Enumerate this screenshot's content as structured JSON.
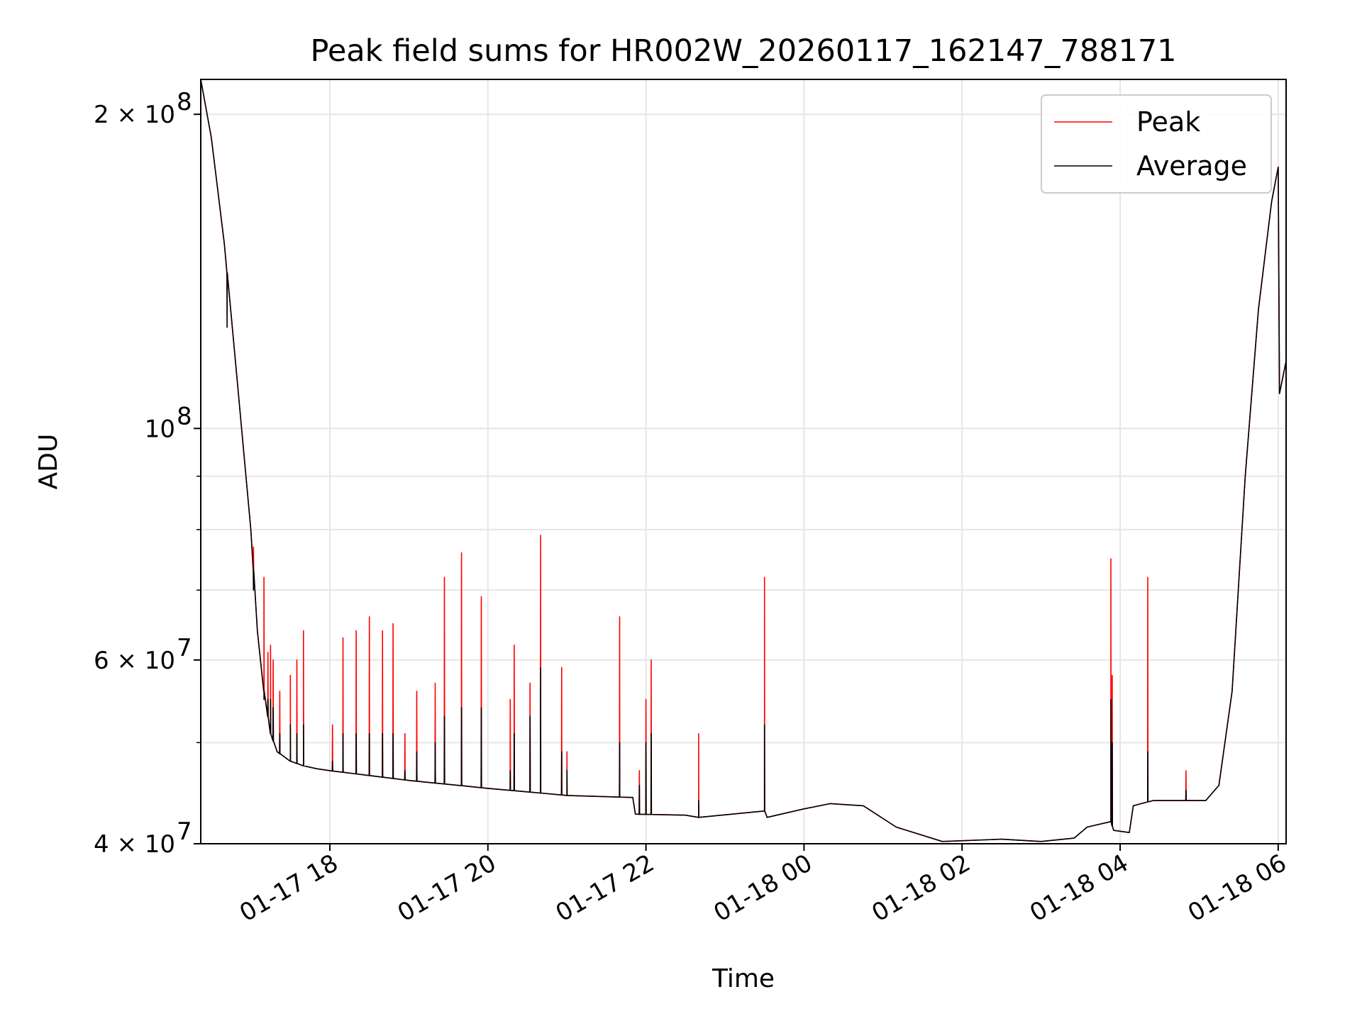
{
  "chart_data": {
    "type": "line",
    "title": "Peak field sums for HR002W_20260117_162147_788171",
    "xlabel": "Time",
    "ylabel": "ADU",
    "yscale": "log",
    "ylim": [
      40000000,
      216000000
    ],
    "xlim": [
      "01-17 16:22",
      "01-18 06:06"
    ],
    "grid": true,
    "legend_position": "top-right",
    "x_ticks": [
      "01-17 18",
      "01-17 20",
      "01-17 22",
      "01-18 00",
      "01-18 02",
      "01-18 04",
      "01-18 06"
    ],
    "y_ticks": [
      {
        "value": 40000000,
        "label": "4 × 10",
        "exp": "7"
      },
      {
        "value": 60000000,
        "label": "6 × 10",
        "exp": "7"
      },
      {
        "value": 100000000,
        "label": "10",
        "exp": "8"
      },
      {
        "value": 200000000,
        "label": "2 × 10",
        "exp": "8"
      }
    ],
    "y_minor_ticks": [
      50000000,
      70000000,
      80000000,
      90000000
    ],
    "series": [
      {
        "name": "Peak",
        "color": "#ff0000"
      },
      {
        "name": "Average",
        "color": "#000000"
      }
    ],
    "average": {
      "x": [
        "01-17 16:22",
        "01-17 16:30",
        "01-17 16:40",
        "01-17 16:50",
        "01-17 17:00",
        "01-17 17:05",
        "01-17 17:10",
        "01-17 17:15",
        "01-17 17:20",
        "01-17 17:30",
        "01-17 17:40",
        "01-17 17:50",
        "01-17 18:00",
        "01-17 19:00",
        "01-17 20:00",
        "01-17 21:00",
        "01-17 21:50",
        "01-17 21:52",
        "01-17 22:30",
        "01-17 22:40",
        "01-17 23:30",
        "01-17 23:32",
        "01-18 00:00",
        "01-18 00:20",
        "01-18 00:45",
        "01-18 01:10",
        "01-18 01:45",
        "01-18 02:30",
        "01-18 03:00",
        "01-18 03:25",
        "01-18 03:35",
        "01-18 03:53",
        "01-18 03:55",
        "01-18 04:07",
        "01-18 04:10",
        "01-18 04:25",
        "01-18 04:45",
        "01-18 05:05",
        "01-18 05:15",
        "01-18 05:25",
        "01-18 05:35",
        "01-18 05:45",
        "01-18 05:55",
        "01-18 06:00",
        "01-18 06:01",
        "01-18 06:06"
      ],
      "y": [
        216000000,
        190000000,
        150000000,
        110000000,
        80000000,
        64000000,
        56000000,
        51000000,
        49000000,
        48000000,
        47500000,
        47200000,
        47000000,
        46000000,
        45200000,
        44500000,
        44300000,
        42700000,
        42600000,
        42400000,
        43000000,
        42400000,
        43200000,
        43700000,
        43500000,
        41500000,
        40200000,
        40400000,
        40200000,
        40500000,
        41500000,
        42000000,
        41200000,
        41000000,
        43500000,
        44000000,
        44000000,
        44000000,
        45500000,
        56000000,
        90000000,
        130000000,
        165000000,
        178000000,
        108000000,
        116000000
      ]
    },
    "peaks": [
      {
        "x": "01-17 16:42",
        "peak": 135000000,
        "avg": 125000000
      },
      {
        "x": "01-17 17:02",
        "peak": 77000000,
        "avg": 70000000
      },
      {
        "x": "01-17 17:10",
        "peak": 72000000,
        "avg": 55000000
      },
      {
        "x": "01-17 17:13",
        "peak": 61000000,
        "avg": 55000000
      },
      {
        "x": "01-17 17:15",
        "peak": 62000000,
        "avg": 55000000
      },
      {
        "x": "01-17 17:17",
        "peak": 60000000,
        "avg": 54000000
      },
      {
        "x": "01-17 17:22",
        "peak": 56000000,
        "avg": 51000000
      },
      {
        "x": "01-17 17:30",
        "peak": 58000000,
        "avg": 52000000
      },
      {
        "x": "01-17 17:35",
        "peak": 60000000,
        "avg": 51000000
      },
      {
        "x": "01-17 17:40",
        "peak": 64000000,
        "avg": 52000000
      },
      {
        "x": "01-17 18:02",
        "peak": 52000000,
        "avg": 48000000
      },
      {
        "x": "01-17 18:10",
        "peak": 63000000,
        "avg": 51000000
      },
      {
        "x": "01-17 18:20",
        "peak": 64000000,
        "avg": 51000000
      },
      {
        "x": "01-17 18:30",
        "peak": 66000000,
        "avg": 51000000
      },
      {
        "x": "01-17 18:40",
        "peak": 64000000,
        "avg": 51000000
      },
      {
        "x": "01-17 18:48",
        "peak": 65000000,
        "avg": 51000000
      },
      {
        "x": "01-17 18:57",
        "peak": 51000000,
        "avg": 47000000
      },
      {
        "x": "01-17 19:06",
        "peak": 56000000,
        "avg": 49000000
      },
      {
        "x": "01-17 19:20",
        "peak": 57000000,
        "avg": 50000000
      },
      {
        "x": "01-17 19:27",
        "peak": 72000000,
        "avg": 53000000
      },
      {
        "x": "01-17 19:40",
        "peak": 76000000,
        "avg": 54000000
      },
      {
        "x": "01-17 19:55",
        "peak": 69000000,
        "avg": 54000000
      },
      {
        "x": "01-17 20:17",
        "peak": 55000000,
        "avg": 47000000
      },
      {
        "x": "01-17 20:20",
        "peak": 62000000,
        "avg": 51000000
      },
      {
        "x": "01-17 20:32",
        "peak": 57000000,
        "avg": 53000000
      },
      {
        "x": "01-17 20:40",
        "peak": 79000000,
        "avg": 59000000
      },
      {
        "x": "01-17 20:56",
        "peak": 59000000,
        "avg": 49000000
      },
      {
        "x": "01-17 21:00",
        "peak": 49000000,
        "avg": 47000000
      },
      {
        "x": "01-17 21:40",
        "peak": 66000000,
        "avg": 50000000
      },
      {
        "x": "01-17 21:55",
        "peak": 47000000,
        "avg": 45500000
      },
      {
        "x": "01-17 22:00",
        "peak": 55000000,
        "avg": 50000000
      },
      {
        "x": "01-17 22:04",
        "peak": 60000000,
        "avg": 51000000
      },
      {
        "x": "01-17 22:40",
        "peak": 51000000,
        "avg": 44000000
      },
      {
        "x": "01-17 23:30",
        "peak": 72000000,
        "avg": 52000000
      },
      {
        "x": "01-18 03:53",
        "peak": 75000000,
        "avg": 55000000
      },
      {
        "x": "01-18 03:54",
        "peak": 58000000,
        "avg": 50000000
      },
      {
        "x": "01-18 04:21",
        "peak": 72000000,
        "avg": 49000000
      },
      {
        "x": "01-18 04:50",
        "peak": 47000000,
        "avg": 45000000
      }
    ]
  }
}
